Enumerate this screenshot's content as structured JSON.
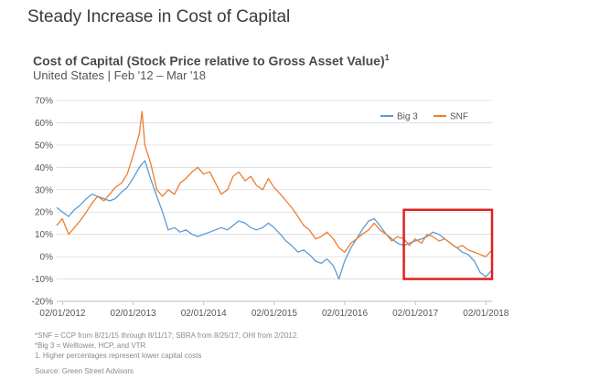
{
  "slide_title": "Steady Increase in Cost of Capital",
  "chart_data": {
    "type": "line",
    "title": "Cost of Capital (Stock Price relative to Gross Asset Value)",
    "title_superscript": "1",
    "subtitle": "United States |  Feb '12 – Mar '18",
    "y_ticks": [
      "70%",
      "60%",
      "50%",
      "40%",
      "30%",
      "20%",
      "10%",
      "0%",
      "-10%",
      "-20%"
    ],
    "ylim": [
      -20,
      70
    ],
    "x_ticks": [
      "02/01/2012",
      "02/01/2013",
      "02/01/2014",
      "02/01/2015",
      "02/01/2016",
      "02/01/2017",
      "02/01/2018"
    ],
    "x_range_years": [
      2012.0,
      2018.17
    ],
    "legend_position": "top-right",
    "gridlines": true,
    "series": [
      {
        "name": "Big 3",
        "color": "#5B9BD5",
        "points": [
          [
            2012.0,
            22
          ],
          [
            2012.08,
            20
          ],
          [
            2012.17,
            18
          ],
          [
            2012.25,
            21
          ],
          [
            2012.33,
            23
          ],
          [
            2012.42,
            26
          ],
          [
            2012.5,
            28
          ],
          [
            2012.58,
            27
          ],
          [
            2012.67,
            26
          ],
          [
            2012.75,
            25
          ],
          [
            2012.83,
            26
          ],
          [
            2012.92,
            29
          ],
          [
            2013.0,
            31
          ],
          [
            2013.08,
            35
          ],
          [
            2013.17,
            40
          ],
          [
            2013.25,
            43
          ],
          [
            2013.33,
            35
          ],
          [
            2013.42,
            27
          ],
          [
            2013.5,
            20
          ],
          [
            2013.58,
            12
          ],
          [
            2013.67,
            13
          ],
          [
            2013.75,
            11
          ],
          [
            2013.83,
            12
          ],
          [
            2013.92,
            10
          ],
          [
            2014.0,
            9
          ],
          [
            2014.08,
            10
          ],
          [
            2014.17,
            11
          ],
          [
            2014.25,
            12
          ],
          [
            2014.33,
            13
          ],
          [
            2014.42,
            12
          ],
          [
            2014.5,
            14
          ],
          [
            2014.58,
            16
          ],
          [
            2014.67,
            15
          ],
          [
            2014.75,
            13
          ],
          [
            2014.83,
            12
          ],
          [
            2014.92,
            13
          ],
          [
            2015.0,
            15
          ],
          [
            2015.08,
            13
          ],
          [
            2015.17,
            10
          ],
          [
            2015.25,
            7
          ],
          [
            2015.33,
            5
          ],
          [
            2015.42,
            2
          ],
          [
            2015.5,
            3
          ],
          [
            2015.58,
            1
          ],
          [
            2015.67,
            -2
          ],
          [
            2015.75,
            -3
          ],
          [
            2015.83,
            -1
          ],
          [
            2015.92,
            -4
          ],
          [
            2016.0,
            -10
          ],
          [
            2016.08,
            -2
          ],
          [
            2016.17,
            4
          ],
          [
            2016.25,
            8
          ],
          [
            2016.33,
            12
          ],
          [
            2016.42,
            16
          ],
          [
            2016.5,
            17
          ],
          [
            2016.58,
            14
          ],
          [
            2016.67,
            10
          ],
          [
            2016.75,
            8
          ],
          [
            2016.83,
            6
          ],
          [
            2016.92,
            5
          ],
          [
            2017.0,
            6
          ],
          [
            2017.08,
            7
          ],
          [
            2017.17,
            8
          ],
          [
            2017.25,
            9
          ],
          [
            2017.33,
            11
          ],
          [
            2017.42,
            10
          ],
          [
            2017.5,
            8
          ],
          [
            2017.58,
            6
          ],
          [
            2017.67,
            4
          ],
          [
            2017.75,
            2
          ],
          [
            2017.83,
            1
          ],
          [
            2017.92,
            -2
          ],
          [
            2018.0,
            -7
          ],
          [
            2018.08,
            -9
          ],
          [
            2018.17,
            -6
          ]
        ]
      },
      {
        "name": "SNF",
        "color": "#ED7D31",
        "points": [
          [
            2012.0,
            14
          ],
          [
            2012.08,
            17
          ],
          [
            2012.17,
            10
          ],
          [
            2012.25,
            13
          ],
          [
            2012.33,
            16
          ],
          [
            2012.42,
            20
          ],
          [
            2012.5,
            24
          ],
          [
            2012.58,
            27
          ],
          [
            2012.67,
            25
          ],
          [
            2012.75,
            28
          ],
          [
            2012.83,
            31
          ],
          [
            2012.92,
            33
          ],
          [
            2013.0,
            37
          ],
          [
            2013.08,
            45
          ],
          [
            2013.17,
            55
          ],
          [
            2013.21,
            65
          ],
          [
            2013.25,
            50
          ],
          [
            2013.33,
            42
          ],
          [
            2013.42,
            30
          ],
          [
            2013.5,
            27
          ],
          [
            2013.58,
            30
          ],
          [
            2013.67,
            28
          ],
          [
            2013.75,
            33
          ],
          [
            2013.83,
            35
          ],
          [
            2013.92,
            38
          ],
          [
            2014.0,
            40
          ],
          [
            2014.08,
            37
          ],
          [
            2014.17,
            38
          ],
          [
            2014.25,
            33
          ],
          [
            2014.33,
            28
          ],
          [
            2014.42,
            30
          ],
          [
            2014.5,
            36
          ],
          [
            2014.58,
            38
          ],
          [
            2014.67,
            34
          ],
          [
            2014.75,
            36
          ],
          [
            2014.83,
            32
          ],
          [
            2014.92,
            30
          ],
          [
            2015.0,
            35
          ],
          [
            2015.08,
            31
          ],
          [
            2015.17,
            28
          ],
          [
            2015.25,
            25
          ],
          [
            2015.33,
            22
          ],
          [
            2015.42,
            18
          ],
          [
            2015.5,
            14
          ],
          [
            2015.58,
            12
          ],
          [
            2015.67,
            8
          ],
          [
            2015.75,
            9
          ],
          [
            2015.83,
            11
          ],
          [
            2015.92,
            8
          ],
          [
            2016.0,
            4
          ],
          [
            2016.08,
            2
          ],
          [
            2016.17,
            6
          ],
          [
            2016.25,
            8
          ],
          [
            2016.33,
            10
          ],
          [
            2016.42,
            12
          ],
          [
            2016.5,
            15
          ],
          [
            2016.58,
            12
          ],
          [
            2016.67,
            10
          ],
          [
            2016.75,
            7
          ],
          [
            2016.83,
            9
          ],
          [
            2016.92,
            8
          ],
          [
            2017.0,
            5
          ],
          [
            2017.08,
            8
          ],
          [
            2017.17,
            6
          ],
          [
            2017.25,
            10
          ],
          [
            2017.33,
            9
          ],
          [
            2017.42,
            7
          ],
          [
            2017.5,
            8
          ],
          [
            2017.58,
            6
          ],
          [
            2017.67,
            4
          ],
          [
            2017.75,
            5
          ],
          [
            2017.83,
            3
          ],
          [
            2017.92,
            2
          ],
          [
            2018.0,
            1
          ],
          [
            2018.08,
            0
          ],
          [
            2018.17,
            3
          ]
        ]
      }
    ],
    "annotation_box": {
      "x_from": 2016.92,
      "x_to": 2018.17,
      "y_from": -10,
      "y_to": 21,
      "color": "#E02020"
    }
  },
  "footnotes": [
    "*SNF = CCP from 8/21/15 through 8/11/17; SBRA from 8/25/17; OHI from 2/2012.",
    "*Big 3 = Welltower, HCP, and VTR",
    "1. Higher percentages represent lower capital costs"
  ],
  "source": "Source: Green Street Advisors"
}
